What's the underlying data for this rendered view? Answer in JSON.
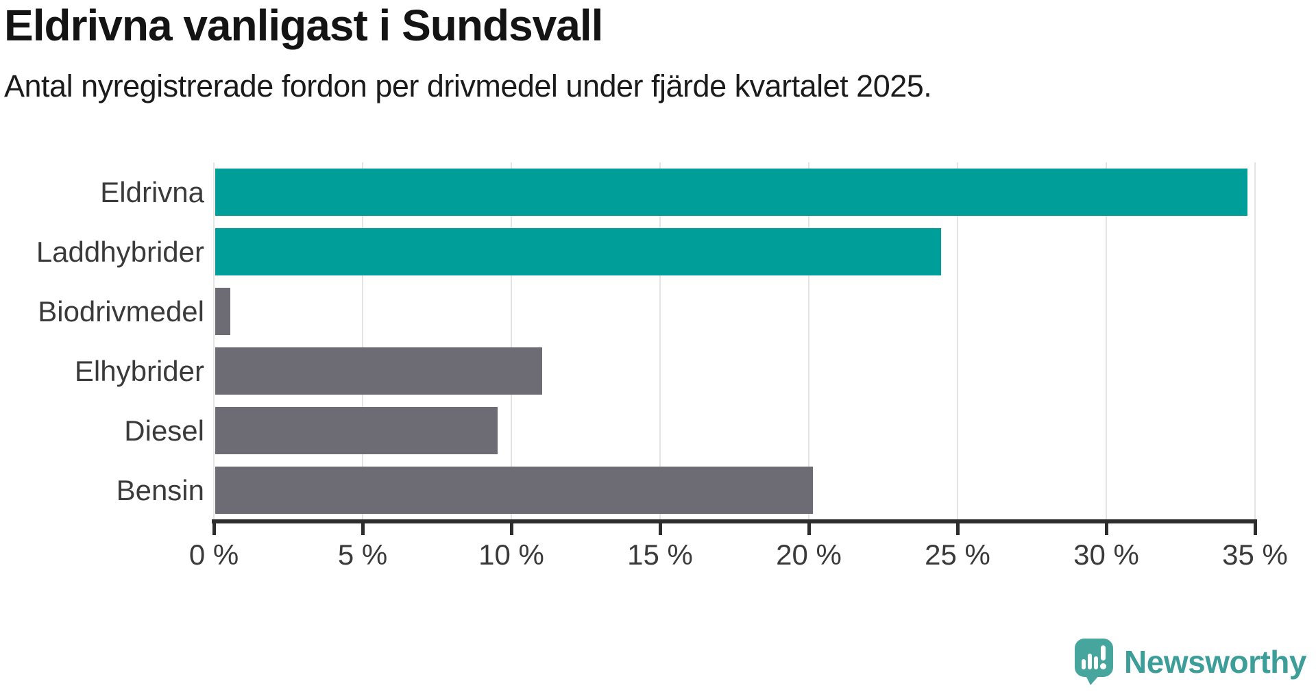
{
  "title": "Eldrivna vanligast i Sundsvall",
  "subtitle": "Antal nyregistrerade fordon per drivmedel under fjärde kvartalet 2025.",
  "chart_data": {
    "type": "bar",
    "orientation": "horizontal",
    "title": "Eldrivna vanligast i Sundsvall",
    "subtitle": "Antal nyregistrerade fordon per drivmedel under fjärde kvartalet 2025.",
    "categories": [
      "Eldrivna",
      "Laddhybrider",
      "Biodrivmedel",
      "Elhybrider",
      "Diesel",
      "Bensin"
    ],
    "values": [
      34.7,
      24.4,
      0.5,
      11.0,
      9.5,
      20.1
    ],
    "unit": "%",
    "xlim": [
      0,
      35
    ],
    "x_tick_step": 5,
    "x_tick_labels": [
      "0 %",
      "5 %",
      "10 %",
      "15 %",
      "20 %",
      "25 %",
      "30 %",
      "35 %"
    ],
    "grid": "vertical-gridlines",
    "legend": "none",
    "bar_palette": [
      "#009e98",
      "#009e98",
      "#6d6b73",
      "#6d6b73",
      "#6d6b73",
      "#6d6b73"
    ]
  },
  "colors": {
    "background": "#ffffff",
    "highlight_teal": "#009e98",
    "neutral_gray": "#6d6b73",
    "gridline": "#e4e4e4",
    "axis": "#2d2d2d",
    "label_text": "#3a3a3a",
    "brand_teal": "#3d9e99",
    "logo_icon_teal": "#46a59d"
  },
  "branding": {
    "name": "Newsworthy",
    "icon": "newsworthy-speech-bubble-chart-icon"
  }
}
